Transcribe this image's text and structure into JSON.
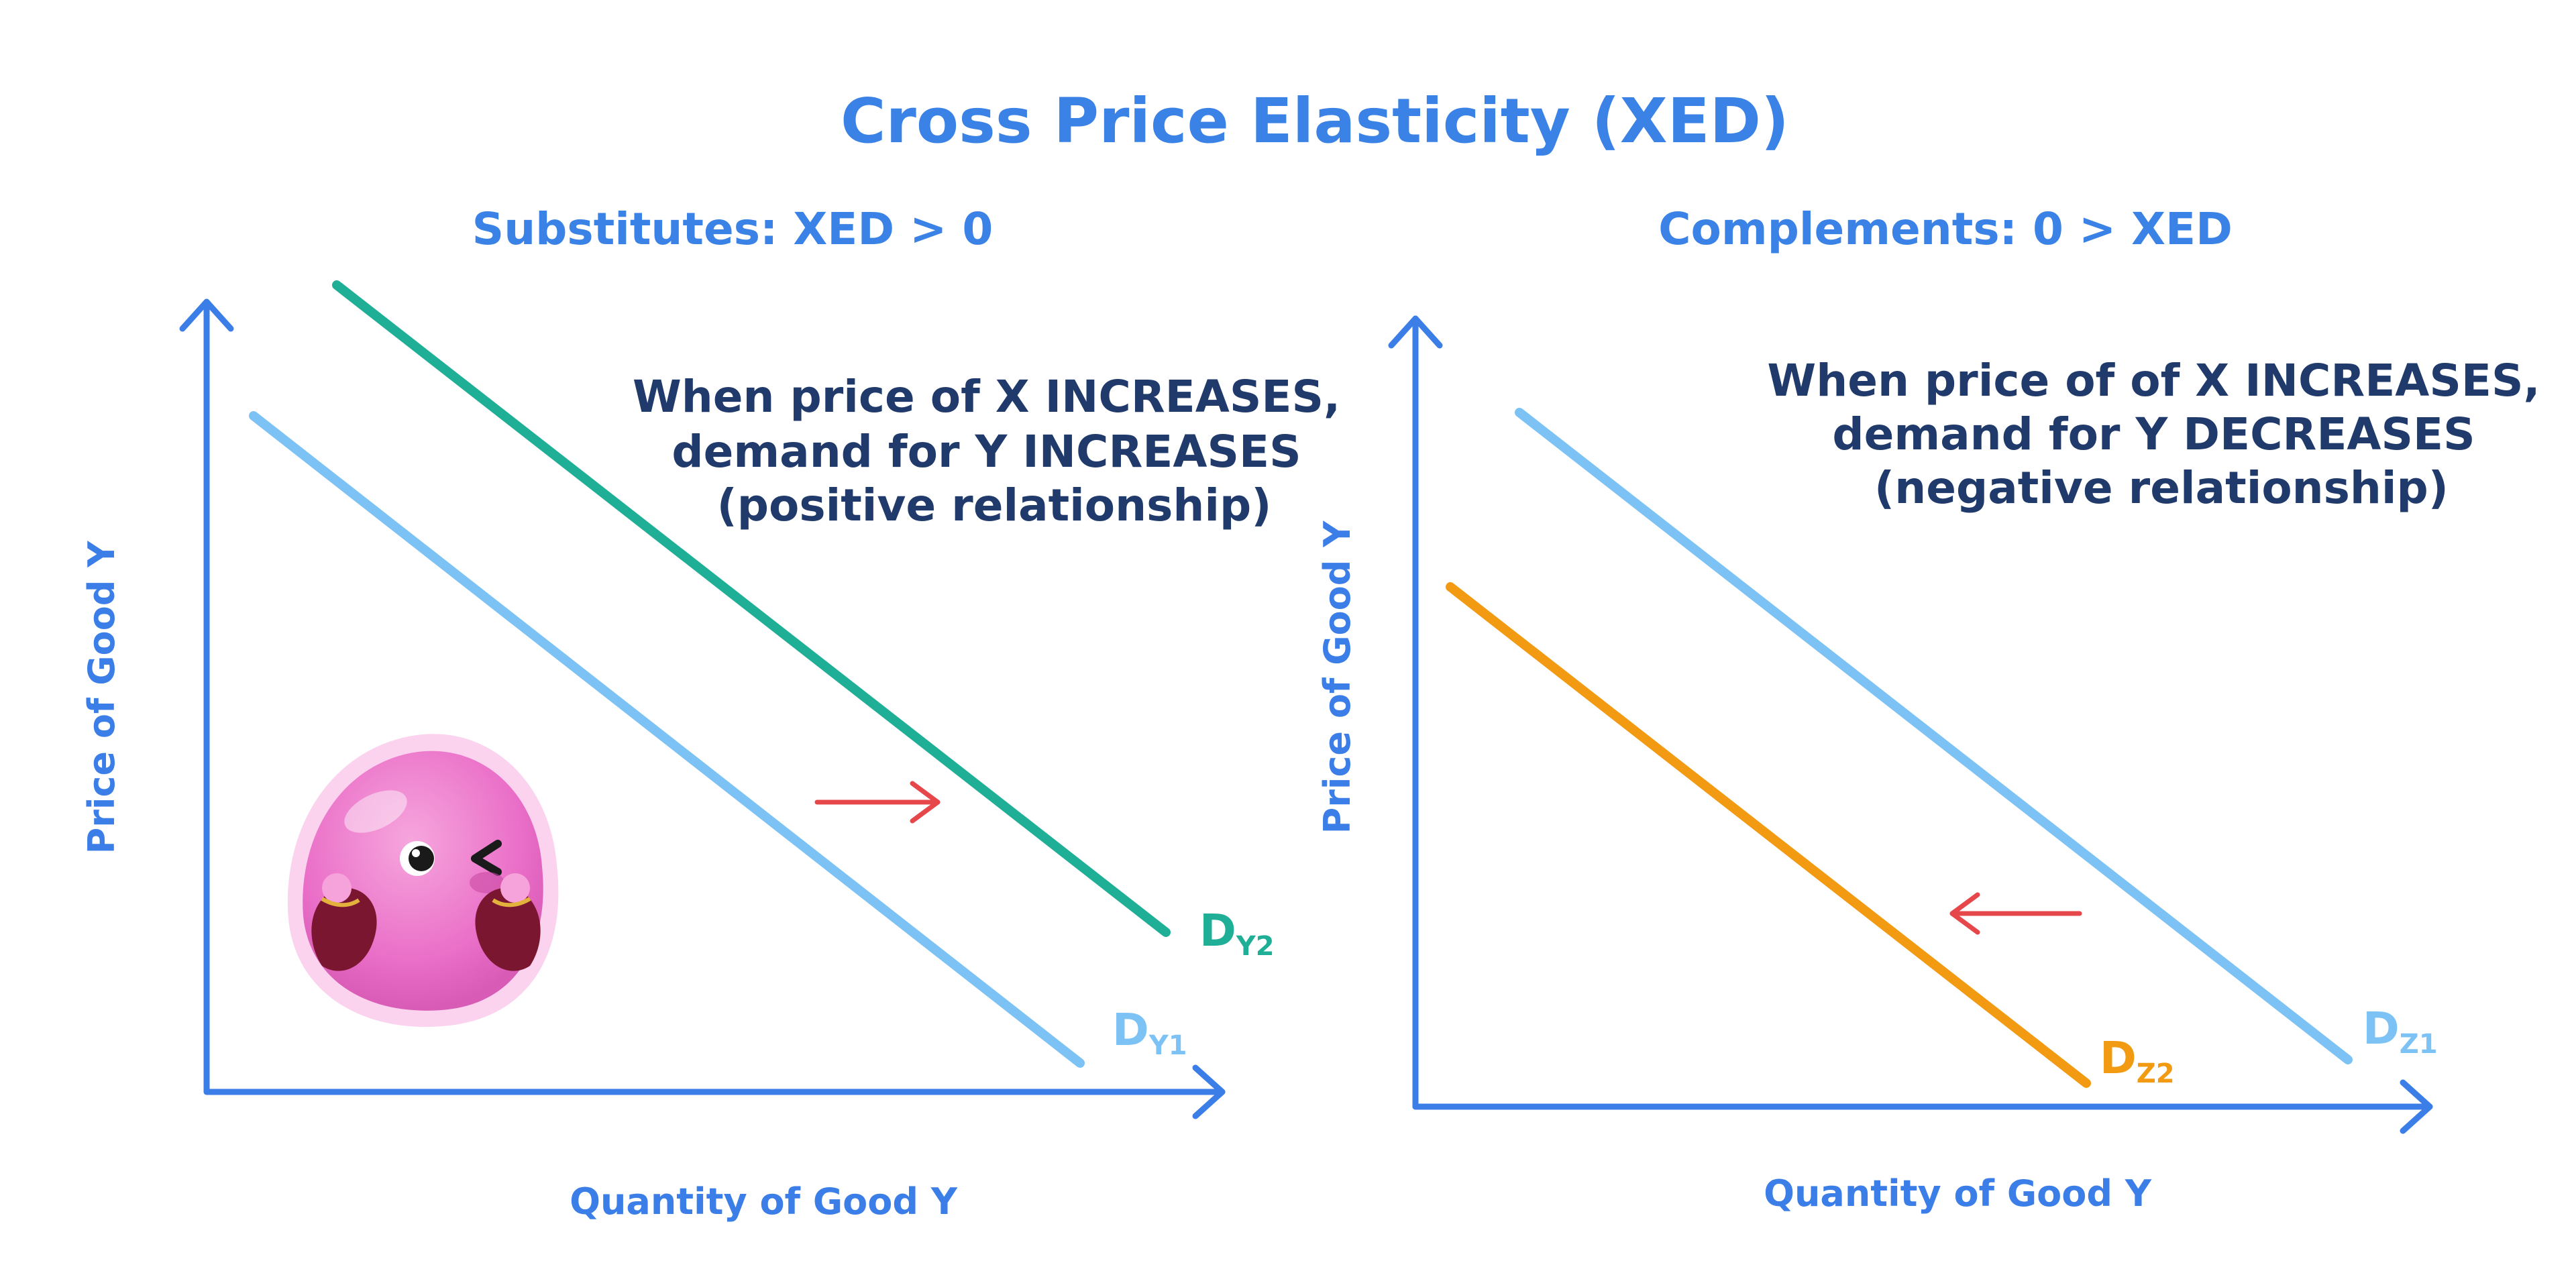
{
  "title": "Cross Price Elasticity (XED)",
  "colors": {
    "title": "#3b82e6",
    "axis": "#3b7ee8",
    "note": "#1f3a6b",
    "curve_light": "#7cc2f5",
    "curve_green": "#1fae96",
    "curve_orange": "#f29a12",
    "arrow": "#e6474a"
  },
  "panels": [
    {
      "subtitle": "Substitutes: XED > 0",
      "xlabel": "Quantity of Good Y",
      "ylabel": "Price of Good Y",
      "note": [
        "When price of X INCREASES,",
        "demand for Y INCREASES",
        "(positive relationship)"
      ],
      "curves": [
        {
          "label": "D",
          "sub": "Y1",
          "color": "curve_light"
        },
        {
          "label": "D",
          "sub": "Y2",
          "color": "curve_green"
        }
      ],
      "shift": "right"
    },
    {
      "subtitle": "Complements: 0 > XED",
      "xlabel": "Quantity of Good Y",
      "ylabel": "Price of Good Y",
      "note": [
        "When price of of X INCREASES,",
        "demand for Y DECREASES",
        "(negative relationship)"
      ],
      "curves": [
        {
          "label": "D",
          "sub": "Z1",
          "color": "curve_light"
        },
        {
          "label": "D",
          "sub": "Z2",
          "color": "curve_orange"
        }
      ],
      "shift": "left"
    }
  ],
  "mascot": {
    "icon": "pink-blob-mascot-icon"
  }
}
